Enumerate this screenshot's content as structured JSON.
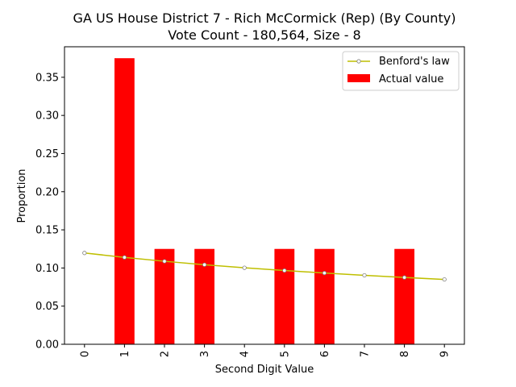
{
  "chart_data": {
    "type": "bar",
    "title": "GA US House District 7 - Rich McCormick (Rep) (By County)",
    "subtitle": "Vote Count - 180,564, Size - 8",
    "xlabel": "Second Digit Value",
    "ylabel": "Proportion",
    "categories": [
      "0",
      "1",
      "2",
      "3",
      "4",
      "5",
      "6",
      "7",
      "8",
      "9"
    ],
    "ylim": [
      0,
      0.39
    ],
    "yticks": [
      0.0,
      0.05,
      0.1,
      0.15,
      0.2,
      0.25,
      0.3,
      0.35
    ],
    "ytick_labels": [
      "0.00",
      "0.05",
      "0.10",
      "0.15",
      "0.20",
      "0.25",
      "0.30",
      "0.35"
    ],
    "grid": false,
    "legend_position": "top-right",
    "series": [
      {
        "name": "Benford's law",
        "kind": "line",
        "color": "#bfbf00",
        "marker_fill": "#ffffff",
        "marker_edge": "#808080",
        "values": [
          0.1197,
          0.1139,
          0.1088,
          0.1043,
          0.1003,
          0.0967,
          0.0934,
          0.0904,
          0.0876,
          0.085
        ]
      },
      {
        "name": "Actual value",
        "kind": "bar",
        "color": "#ff0000",
        "values": [
          0,
          0.375,
          0.125,
          0.125,
          0,
          0.125,
          0.125,
          0,
          0.125,
          0
        ]
      }
    ]
  }
}
